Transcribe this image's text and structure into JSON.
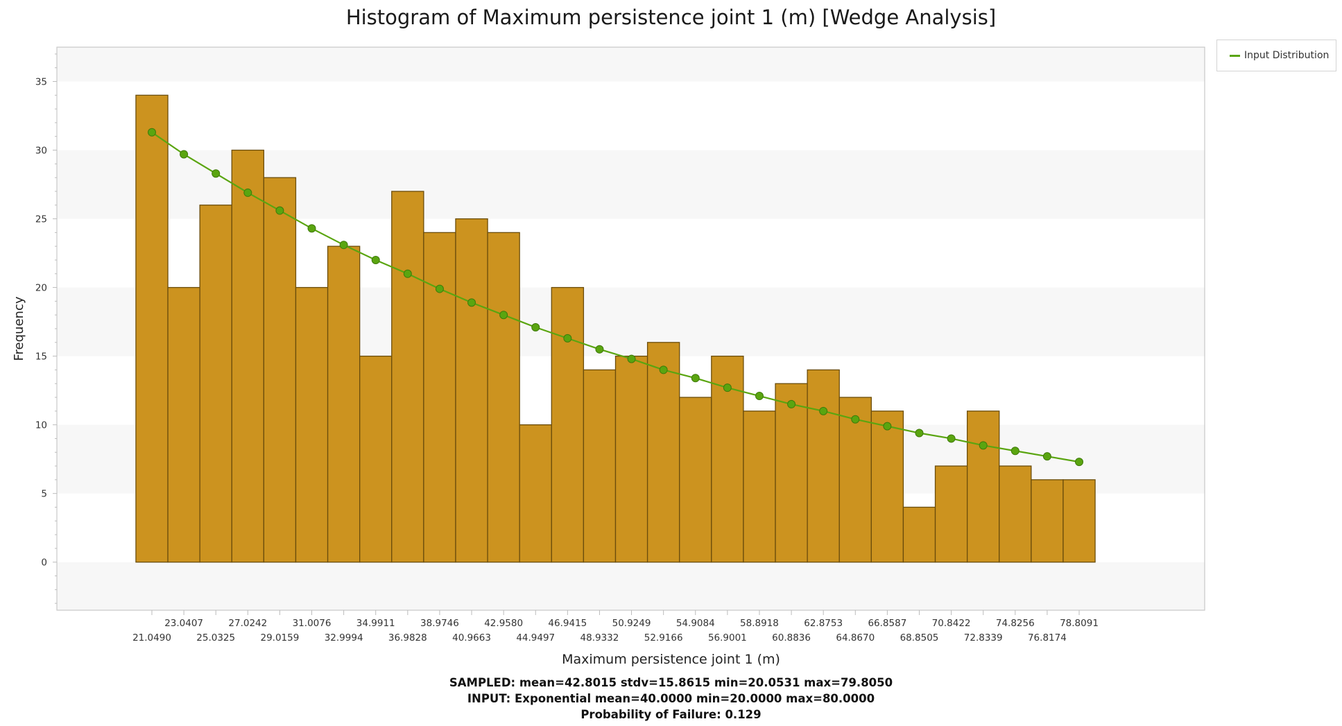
{
  "chart_data": {
    "type": "bar",
    "title": "Histogram of Maximum persistence joint 1 (m) [Wedge Analysis]",
    "xlabel": "Maximum persistence joint 1 (m)",
    "ylabel": "Frequency",
    "ylim": [
      -3.5,
      37.5
    ],
    "y_ticks": [
      "0",
      "5",
      "10",
      "15",
      "20",
      "25",
      "30",
      "35"
    ],
    "x_ticks_upper": [
      "23.0407",
      "27.0242",
      "31.0076",
      "34.9911",
      "38.9746",
      "42.9580",
      "46.9415",
      "50.9249",
      "54.9084",
      "58.8918",
      "62.8753",
      "66.8587",
      "70.8422",
      "74.8256",
      "78.8091"
    ],
    "x_ticks_lower": [
      "21.0490",
      "25.0325",
      "29.0159",
      "32.9994",
      "36.9828",
      "40.9663",
      "44.9497",
      "48.9332",
      "52.9166",
      "56.9001",
      "60.8836",
      "64.8670",
      "68.8505",
      "72.8339",
      "76.8174"
    ],
    "bin_centers": [
      21.049,
      23.0407,
      25.0325,
      27.0242,
      29.0159,
      31.0076,
      32.9994,
      34.9911,
      36.9828,
      38.9746,
      40.9663,
      42.958,
      44.9497,
      46.9415,
      48.9332,
      50.9249,
      52.9166,
      54.9084,
      56.9001,
      58.8918,
      60.8836,
      62.8753,
      64.867,
      66.8587,
      68.8505,
      70.8422,
      72.8339,
      74.8256,
      76.8174,
      78.8091
    ],
    "bin_width": 1.9917,
    "values": [
      34,
      20,
      26,
      30,
      28,
      20,
      23,
      15,
      27,
      24,
      25,
      24,
      10,
      20,
      14,
      15,
      16,
      12,
      15,
      11,
      13,
      14,
      12,
      11,
      4,
      7,
      11,
      7,
      6,
      6
    ],
    "series": [
      {
        "name": "Input Distribution",
        "values": [
          31.3,
          29.7,
          28.3,
          26.9,
          25.6,
          24.3,
          23.1,
          22.0,
          21.0,
          19.9,
          18.9,
          18.0,
          17.1,
          16.3,
          15.5,
          14.8,
          14.0,
          13.4,
          12.7,
          12.1,
          11.5,
          11.0,
          10.4,
          9.9,
          9.4,
          9.0,
          8.5,
          8.1,
          7.7,
          7.3
        ]
      }
    ],
    "colors": {
      "bar_fill": "#cc931f",
      "bar_stroke": "#6b4d0c",
      "line": "#5aa510",
      "marker": "#5aa510",
      "band": "#f7f7f7"
    },
    "grid": "horizontal bands",
    "legend_position": "top-right, outside plot"
  },
  "legend": {
    "label": "Input Distribution"
  },
  "stats": {
    "sampled": "SAMPLED: mean=42.8015 stdv=15.8615 min=20.0531 max=79.8050",
    "input": "INPUT: Exponential mean=40.0000 min=20.0000 max=80.0000",
    "pof": "Probability of Failure: 0.129"
  }
}
